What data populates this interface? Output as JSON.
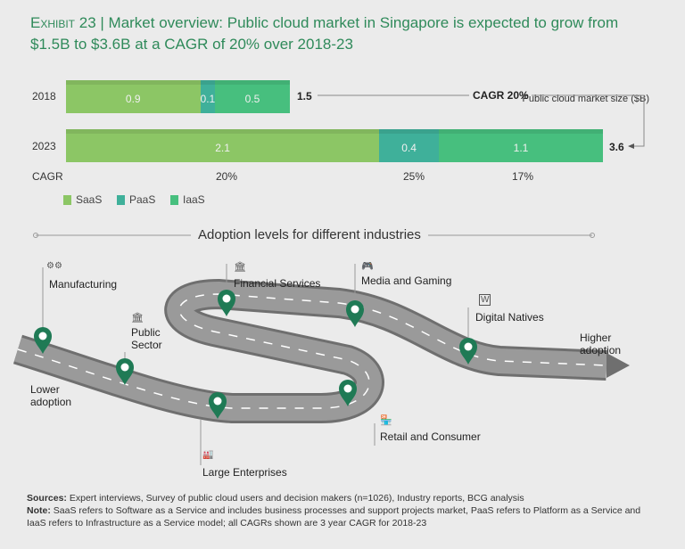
{
  "title": {
    "exhibit": "Exhibit 23",
    "text": "Market overview: Public cloud market in Singapore is expected to grow from $1.5B to $3.6B at a CAGR of 20% over 2018-23"
  },
  "chart_data": {
    "type": "bar",
    "orientation": "horizontal-stacked",
    "unit_label": "Public cloud market size ($B)",
    "categories": [
      "2018",
      "2023"
    ],
    "series": [
      {
        "name": "SaaS",
        "values": [
          0.9,
          2.1
        ],
        "color": "#8cc665",
        "cagr": "20%"
      },
      {
        "name": "PaaS",
        "values": [
          0.1,
          0.4
        ],
        "color": "#3fb09a",
        "cagr": "25%"
      },
      {
        "name": "IaaS",
        "values": [
          0.5,
          1.1
        ],
        "color": "#47bf7e",
        "cagr": "17%"
      }
    ],
    "totals": [
      "1.5",
      "3.6"
    ],
    "segment_labels": [
      [
        "0.9",
        "0.1",
        "0.5"
      ],
      [
        "2.1",
        "0.4",
        "1.1"
      ]
    ],
    "cagr_row_label": "CAGR",
    "overall_cagr": "CAGR 20%",
    "xlim": [
      0,
      3.6
    ]
  },
  "adoption": {
    "title": "Adoption levels for different industries",
    "low": "Lower adoption",
    "high": "Higher adoption",
    "industries": [
      "Manufacturing",
      "Public Sector",
      "Large Enterprises",
      "Retail and Consumer",
      "Financial Services",
      "Media and Gaming",
      "Digital Natives"
    ]
  },
  "footer": {
    "sources_label": "Sources:",
    "sources": "Expert interviews, Survey of public cloud users and decision makers (n=1026), Industry reports, BCG analysis",
    "note_label": "Note:",
    "note": "SaaS refers to Software as a Service and includes business processes and support projects market, PaaS refers to Platform as a Service and IaaS refers to Infrastructure as a Service model; all CAGRs shown are 3 year CAGR for 2018-23"
  },
  "colors": {
    "accent": "#2f8a5a",
    "pin": "#1f7a55",
    "road": "#8a8a8a"
  }
}
